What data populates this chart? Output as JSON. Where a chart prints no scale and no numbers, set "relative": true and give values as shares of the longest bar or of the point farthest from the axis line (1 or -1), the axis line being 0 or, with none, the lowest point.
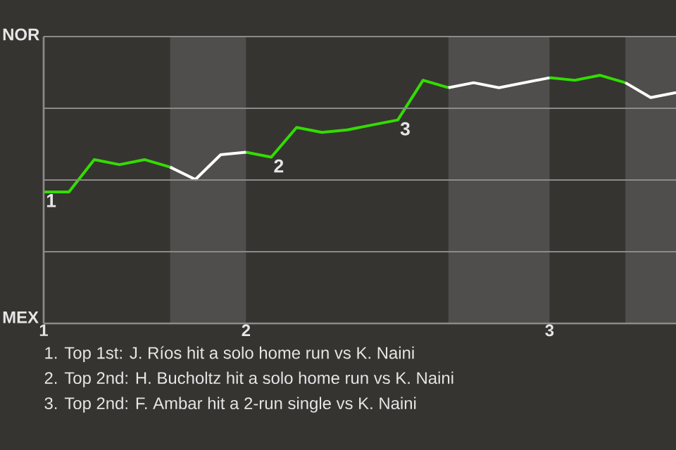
{
  "chart_data": {
    "type": "line",
    "categories": [
      "1",
      null,
      null,
      null,
      null,
      null,
      null,
      null,
      "2",
      null,
      null,
      null,
      null,
      null,
      null,
      null,
      null,
      null,
      null,
      null,
      "3",
      null,
      null,
      null,
      null,
      null
    ],
    "relative": true,
    "series": [
      {
        "color": "#33dd00",
        "values": [
          0.53,
          0.53,
          0.66,
          0.64,
          0.66,
          0.63,
          null,
          null,
          0.69,
          0.67,
          0.79,
          0.77,
          0.78,
          0.8,
          0.82,
          0.98,
          0.95,
          null,
          null,
          null,
          0.99,
          0.98,
          1,
          0.97,
          null,
          null
        ]
      },
      {
        "color": "#ffffff",
        "values": [
          null,
          null,
          null,
          null,
          null,
          0.63,
          0.58,
          0.68,
          0.69,
          null,
          null,
          null,
          null,
          null,
          null,
          null,
          0.95,
          0.97,
          0.95,
          0.97,
          0.99,
          null,
          null,
          0.97,
          0.91,
          0.93
        ]
      }
    ],
    "grid": "y",
    "annotations": [
      "NOR",
      "MEX",
      {
        "text": "1",
        "x": "1",
        "y": 0.53
      },
      {
        "text": "2",
        "y": 0.67
      },
      {
        "text": "3",
        "y": 0.82
      },
      "1. Top 1st: J. Ríos hit a solo home run vs K. Naini",
      "2. Top 2nd: H. Bucholtz hit a solo home run vs K. Naini",
      "3. Top 2nd: F. Ambar hit a 2-run single vs K. Naini"
    ]
  }
}
